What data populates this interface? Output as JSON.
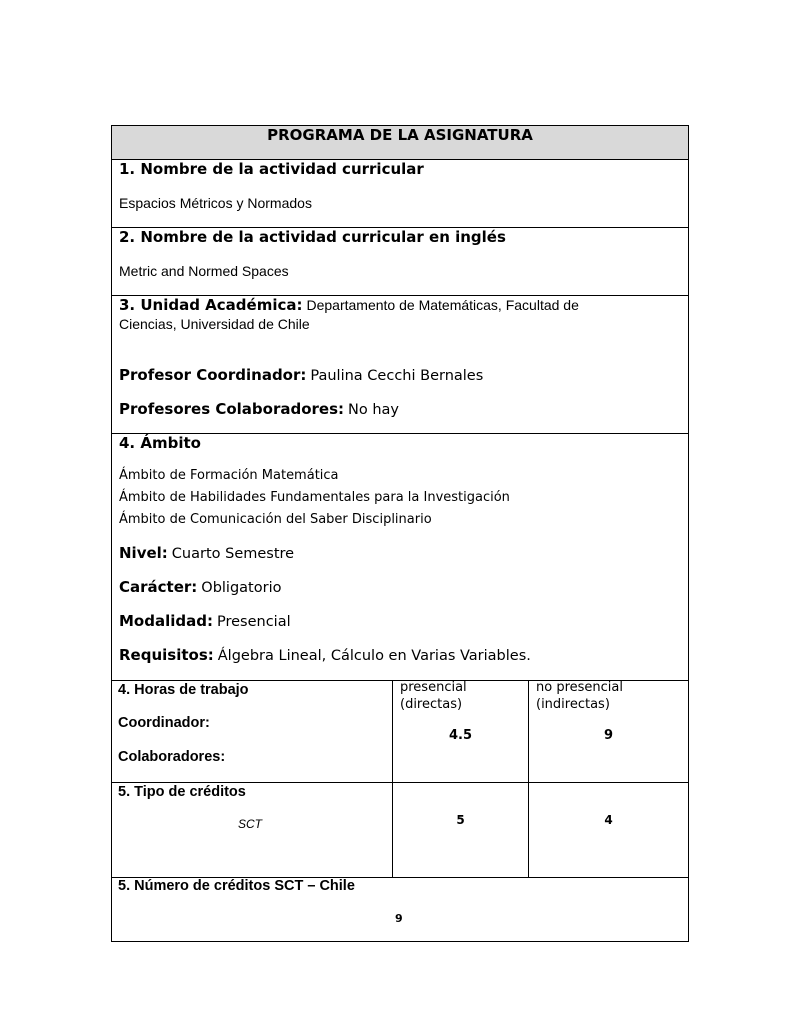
{
  "title": "PROGRAMA DE LA ASIGNATURA",
  "section1": {
    "heading": "1. Nombre de la actividad curricular",
    "value": "Espacios Métricos y Normados"
  },
  "section2": {
    "heading": "2. Nombre de la actividad curricular en inglés",
    "value": "Metric and Normed Spaces"
  },
  "section3": {
    "heading": "3. Unidad Académica:",
    "value_line1": "Departamento de Matemáticas, Facultad de",
    "value_line2": "Ciencias, Universidad de Chile",
    "coordinador_label": "Profesor Coordinador:",
    "coordinador_value": "Paulina Cecchi Bernales",
    "colaboradores_label": "Profesores Colaboradores:",
    "colaboradores_value": "No hay"
  },
  "section4": {
    "heading": "4. Ámbito",
    "ambitos": [
      "Ámbito de Formación Matemática",
      "Ámbito de Habilidades Fundamentales para la Investigación",
      "Ámbito de Comunicación del Saber Disciplinario"
    ],
    "nivel_label": "Nivel:",
    "nivel_value": "Cuarto Semestre",
    "caracter_label": "Carácter:",
    "caracter_value": "Obligatorio",
    "modalidad_label": "Modalidad:",
    "modalidad_value": "Presencial",
    "requisitos_label": "Requisitos:",
    "requisitos_value": "Álgebra Lineal, Cálculo en Varias Variables."
  },
  "horas": {
    "heading": "4. Horas de trabajo",
    "coordinador_label": "Coordinador:",
    "colaboradores_label": "Colaboradores:",
    "presencial_line1": "presencial",
    "presencial_line2": "(directas)",
    "no_presencial_line1": "no presencial",
    "no_presencial_line2": "(indirectas)",
    "presencial_value": "4.5",
    "no_presencial_value": "9"
  },
  "creditos": {
    "heading": "5. Tipo de créditos",
    "type": "SCT",
    "presencial_value": "5",
    "no_presencial_value": "4"
  },
  "numero_creditos": {
    "heading": "5. Número de créditos SCT – Chile",
    "value": "9"
  }
}
